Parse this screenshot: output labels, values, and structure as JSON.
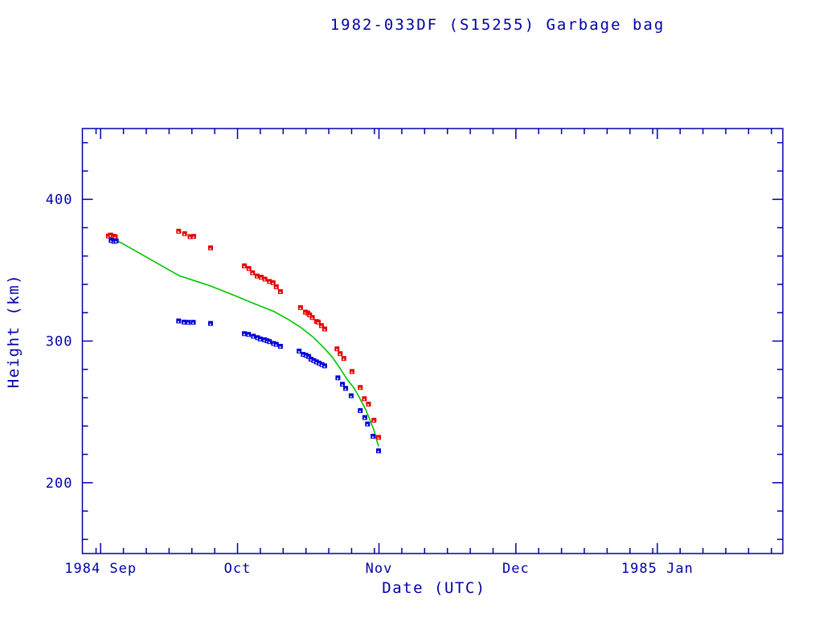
{
  "colors": {
    "ink": "#0000aa",
    "background": "#ffffff",
    "red_marker": "#e80000",
    "blue_marker": "#0000d8",
    "green_line": "#00c400"
  },
  "chart_data": {
    "type": "scatter",
    "title": "1982-033DF (S15255) Garbage bag",
    "xlabel": "Date (UTC)",
    "ylabel": "Height (km)",
    "grid": false,
    "legend": null,
    "x_axis": {
      "epoch_day0": "1984-09-01",
      "range_days": [
        -4,
        149.5
      ],
      "major_ticks": [
        {
          "day": 0,
          "label": "1984 Sep"
        },
        {
          "day": 30,
          "label": "Oct"
        },
        {
          "day": 61,
          "label": "Nov"
        },
        {
          "day": 91,
          "label": "Dec"
        },
        {
          "day": 122,
          "label": "1985 Jan"
        }
      ],
      "minor_tick_days": [
        -1,
        5,
        10,
        15,
        20,
        25,
        35,
        40,
        45,
        50,
        55,
        60,
        66,
        71,
        76,
        81,
        86,
        96,
        101,
        106,
        111,
        116,
        121,
        127,
        132,
        137,
        142,
        147
      ]
    },
    "y_axis": {
      "range": [
        150,
        450
      ],
      "major_ticks": [
        200,
        300,
        400
      ],
      "minor_ticks": [
        160,
        180,
        220,
        240,
        260,
        280,
        320,
        340,
        360,
        380,
        420,
        440
      ]
    },
    "series": [
      {
        "name": "red squares (upper band)",
        "kind": "scatter",
        "marker": "filled-square-with-white-dot",
        "color": "#e80000",
        "points_day_km": [
          [
            1.7,
            374.2
          ],
          [
            2.2,
            374.8
          ],
          [
            2.8,
            374.0
          ],
          [
            3.2,
            373.6
          ],
          [
            17.1,
            377.5
          ],
          [
            18.4,
            375.8
          ],
          [
            19.6,
            373.7
          ],
          [
            20.4,
            373.9
          ],
          [
            24.1,
            365.8
          ],
          [
            31.5,
            353.1
          ],
          [
            32.5,
            351.2
          ],
          [
            33.3,
            348.2
          ],
          [
            34.3,
            345.9
          ],
          [
            35.2,
            345.0
          ],
          [
            36.0,
            343.7
          ],
          [
            37.0,
            342.1
          ],
          [
            37.8,
            341.2
          ],
          [
            38.5,
            338.3
          ],
          [
            39.4,
            334.9
          ],
          [
            43.8,
            323.6
          ],
          [
            44.9,
            320.4
          ],
          [
            45.4,
            319.8
          ],
          [
            45.8,
            318.5
          ],
          [
            46.4,
            316.6
          ],
          [
            47.3,
            313.8
          ],
          [
            47.7,
            313.4
          ],
          [
            48.4,
            310.9
          ],
          [
            49.1,
            308.5
          ],
          [
            51.8,
            294.5
          ],
          [
            52.5,
            291.1
          ],
          [
            53.3,
            287.7
          ],
          [
            55.1,
            278.5
          ],
          [
            56.9,
            267.2
          ],
          [
            57.8,
            259.3
          ],
          [
            58.7,
            255.5
          ],
          [
            59.9,
            244.1
          ],
          [
            60.9,
            232.0
          ]
        ]
      },
      {
        "name": "blue squares (lower band)",
        "kind": "scatter",
        "marker": "filled-square-with-white-dot",
        "color": "#0000d8",
        "points_day_km": [
          [
            2.3,
            371.0
          ],
          [
            2.9,
            370.4
          ],
          [
            3.4,
            370.7
          ],
          [
            17.1,
            314.2
          ],
          [
            18.3,
            313.4
          ],
          [
            19.2,
            313.2
          ],
          [
            20.3,
            313.2
          ],
          [
            24.1,
            312.4
          ],
          [
            31.5,
            305.2
          ],
          [
            32.4,
            304.7
          ],
          [
            33.5,
            303.4
          ],
          [
            34.4,
            302.4
          ],
          [
            35.0,
            301.5
          ],
          [
            35.9,
            300.9
          ],
          [
            36.5,
            300.2
          ],
          [
            37.0,
            299.6
          ],
          [
            37.9,
            298.3
          ],
          [
            38.5,
            297.7
          ],
          [
            39.4,
            296.3
          ],
          [
            43.5,
            292.9
          ],
          [
            44.4,
            290.6
          ],
          [
            45.0,
            289.9
          ],
          [
            45.6,
            289.1
          ],
          [
            46.1,
            287.2
          ],
          [
            46.7,
            286.3
          ],
          [
            47.3,
            285.3
          ],
          [
            47.9,
            284.4
          ],
          [
            48.5,
            283.4
          ],
          [
            49.1,
            282.5
          ],
          [
            52.0,
            274.0
          ],
          [
            53.0,
            269.5
          ],
          [
            53.7,
            266.6
          ],
          [
            54.9,
            261.4
          ],
          [
            56.9,
            250.9
          ],
          [
            57.9,
            246.0
          ],
          [
            58.5,
            241.5
          ],
          [
            59.7,
            232.8
          ],
          [
            60.9,
            222.5
          ]
        ]
      },
      {
        "name": "green line (smooth mean)",
        "kind": "line",
        "color": "#00c400",
        "points_day_km": [
          [
            3.6,
            371.0
          ],
          [
            17.3,
            346.0
          ],
          [
            24.0,
            339.0
          ],
          [
            29.1,
            332.5
          ],
          [
            34.0,
            326.0
          ],
          [
            37.9,
            321.0
          ],
          [
            41.0,
            315.5
          ],
          [
            43.7,
            310.0
          ],
          [
            46.5,
            303.0
          ],
          [
            49.0,
            295.0
          ],
          [
            50.8,
            288.5
          ],
          [
            52.3,
            281.5
          ],
          [
            54.0,
            273.0
          ],
          [
            55.5,
            267.0
          ],
          [
            56.3,
            262.5
          ],
          [
            57.2,
            257.0
          ],
          [
            58.1,
            251.5
          ],
          [
            59.0,
            244.5
          ],
          [
            59.9,
            237.0
          ],
          [
            60.5,
            230.0
          ],
          [
            60.9,
            225.5
          ]
        ]
      }
    ]
  }
}
